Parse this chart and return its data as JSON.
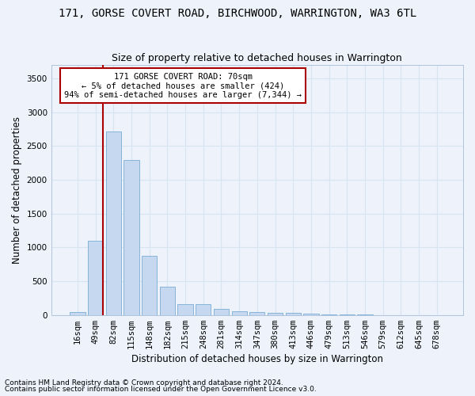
{
  "title_line1": "171, GORSE COVERT ROAD, BIRCHWOOD, WARRINGTON, WA3 6TL",
  "title_line2": "Size of property relative to detached houses in Warrington",
  "xlabel": "Distribution of detached houses by size in Warrington",
  "ylabel": "Number of detached properties",
  "bar_color": "#c5d8f0",
  "bar_edge_color": "#7aadd4",
  "highlight_color": "#aa0000",
  "annotation_title": "171 GORSE COVERT ROAD: 70sqm",
  "annotation_line2": "← 5% of detached houses are smaller (424)",
  "annotation_line3": "94% of semi-detached houses are larger (7,344) →",
  "categories": [
    "16sqm",
    "49sqm",
    "82sqm",
    "115sqm",
    "148sqm",
    "182sqm",
    "215sqm",
    "248sqm",
    "281sqm",
    "314sqm",
    "347sqm",
    "380sqm",
    "413sqm",
    "446sqm",
    "479sqm",
    "513sqm",
    "546sqm",
    "579sqm",
    "612sqm",
    "645sqm",
    "678sqm"
  ],
  "values": [
    45,
    1100,
    2720,
    2290,
    880,
    420,
    165,
    165,
    90,
    55,
    45,
    35,
    30,
    20,
    10,
    5,
    4,
    2,
    2,
    1,
    1
  ],
  "ylim": [
    0,
    3700
  ],
  "yticks": [
    0,
    500,
    1000,
    1500,
    2000,
    2500,
    3000,
    3500
  ],
  "property_bin_index": 1,
  "footnote1": "Contains HM Land Registry data © Crown copyright and database right 2024.",
  "footnote2": "Contains public sector information licensed under the Open Government Licence v3.0.",
  "bg_color": "#edf2fb",
  "grid_color": "#d8e4f0",
  "title1_fontsize": 10,
  "title2_fontsize": 9,
  "axis_label_fontsize": 8.5,
  "tick_fontsize": 7.5,
  "footnote_fontsize": 6.5
}
